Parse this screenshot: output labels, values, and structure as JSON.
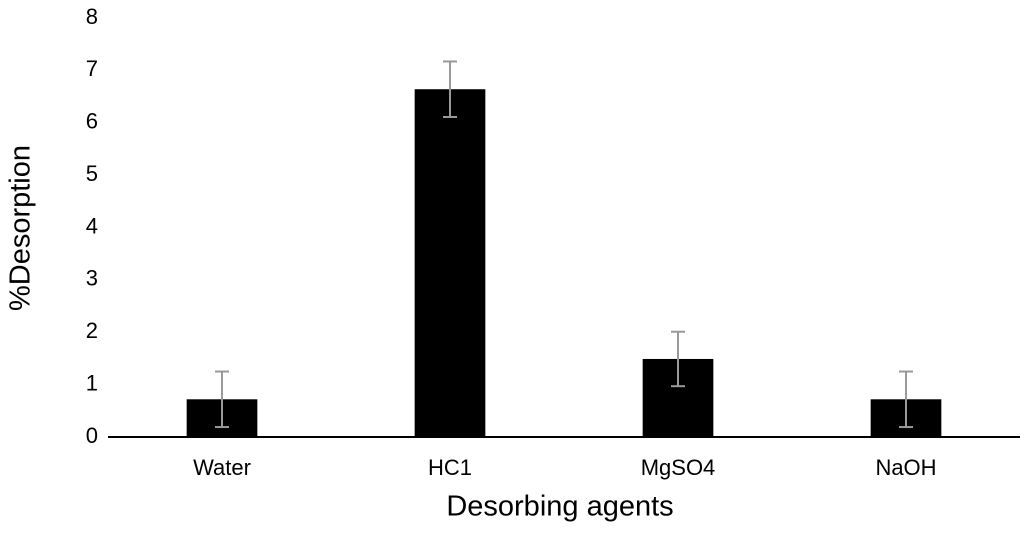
{
  "chart_data": {
    "type": "bar",
    "x_label": "Desorbing agents",
    "y_label": "%Desorption",
    "categories": [
      "Water",
      "HC1",
      "MgSO4",
      "NaOH"
    ],
    "values": [
      0.72,
      6.64,
      1.49,
      0.72
    ],
    "errors": [
      0.53,
      0.53,
      0.52,
      0.53
    ],
    "color": "#000000",
    "error_color": "#999999",
    "ylim": [
      0,
      8
    ],
    "yticks": [
      0,
      1,
      2,
      3,
      4,
      5,
      6,
      7,
      8
    ],
    "grid": false
  }
}
